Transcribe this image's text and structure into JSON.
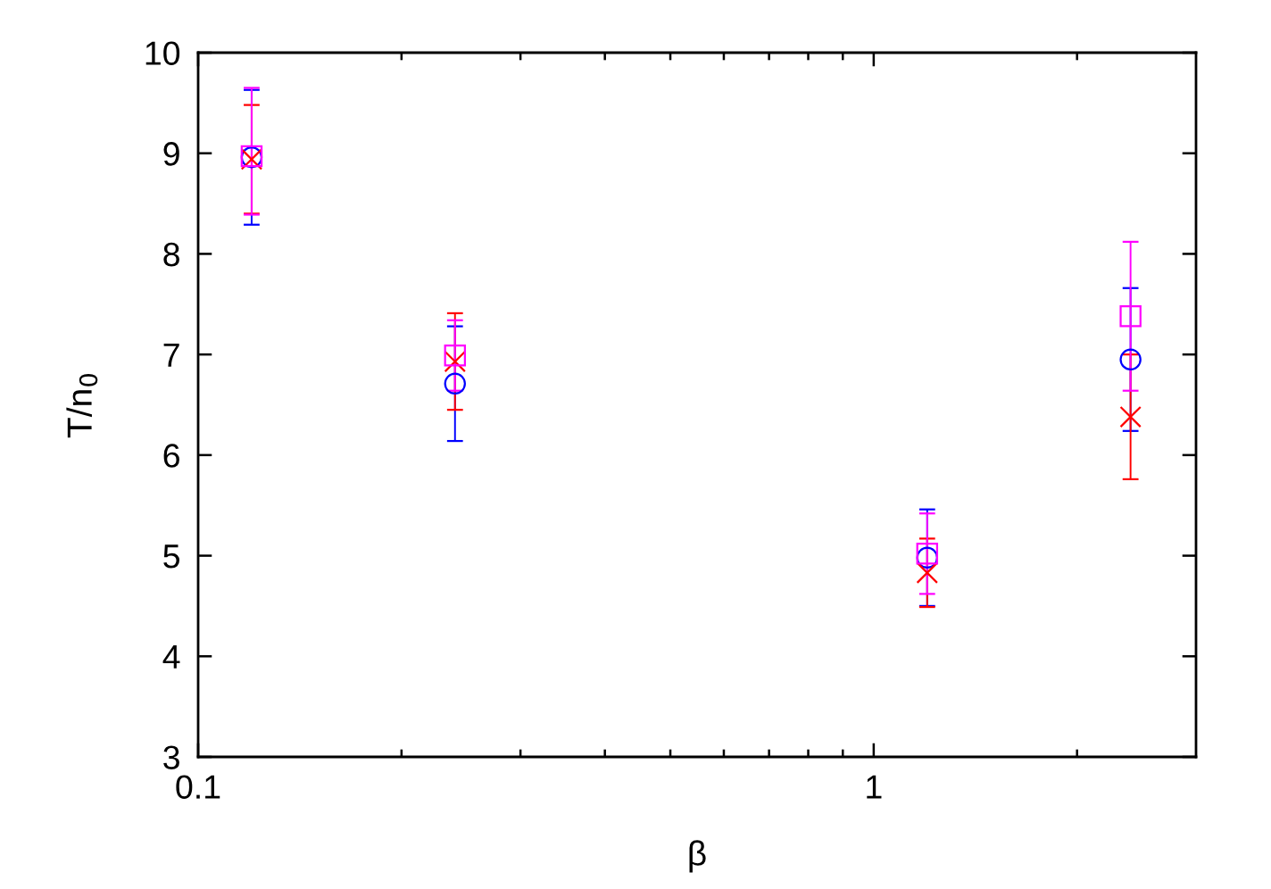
{
  "chart_data": {
    "type": "scatter",
    "xlabel": "β",
    "ylabel": "T/n$_{0}$",
    "log": "x",
    "x": [
      0.12,
      0.24,
      1.2,
      2.4
    ],
    "xlim": [
      0.1,
      3
    ],
    "xticks": [
      0.1,
      {
        "value": 0.2,
        "label": null
      },
      {
        "value": 0.3,
        "label": null
      },
      {
        "value": 0.4,
        "label": null
      },
      {
        "value": 0.5,
        "label": null
      },
      {
        "value": 0.6,
        "label": null
      },
      {
        "value": 0.7,
        "label": null
      },
      {
        "value": 0.8,
        "label": null
      },
      {
        "value": 0.9,
        "label": null
      },
      1,
      {
        "value": 2,
        "label": null
      }
    ],
    "ylim": [
      3,
      10
    ],
    "yticks": [
      3,
      4,
      5,
      6,
      7,
      8,
      9,
      10
    ],
    "grid": false,
    "series": [
      {
        "color": "#0000ff",
        "marker": "circle",
        "values": [
          8.96,
          6.71,
          4.98,
          6.95
        ],
        "errors": [
          0.67,
          0.57,
          0.48,
          0.71
        ]
      },
      {
        "color": "#ff0000",
        "marker": "cross",
        "values": [
          8.94,
          6.93,
          4.83,
          6.38
        ],
        "errors": [
          0.54,
          0.48,
          0.34,
          0.62
        ]
      },
      {
        "color": "#ff00ff",
        "marker": "square",
        "values": [
          8.97,
          6.99,
          5.02,
          7.38
        ],
        "errors": [
          [
            8.39,
            9.65
          ],
          0.35,
          0.4,
          0.74
        ]
      }
    ]
  }
}
